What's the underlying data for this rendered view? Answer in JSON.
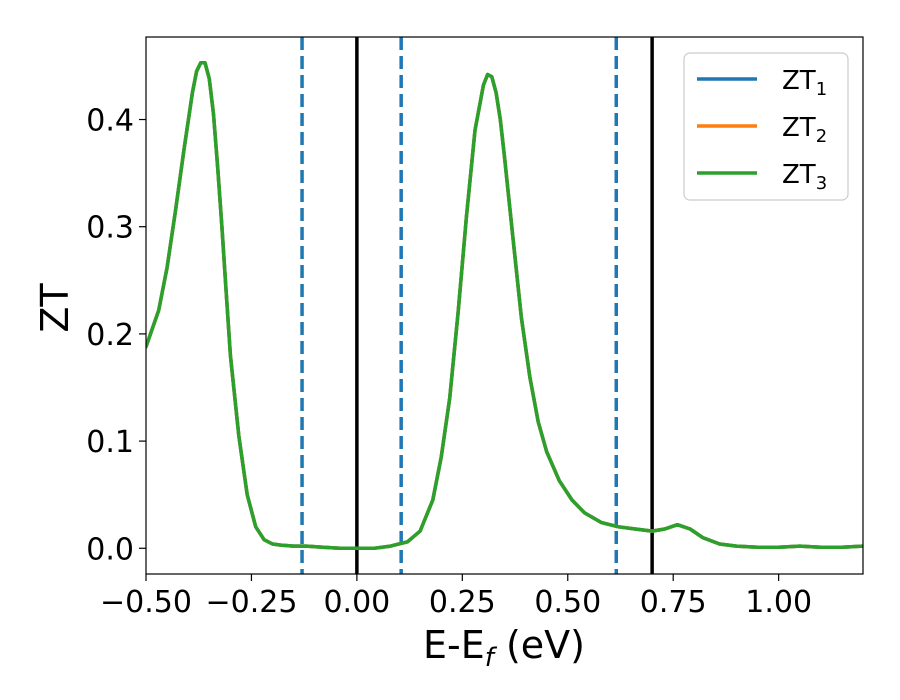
{
  "chart_data": {
    "type": "line",
    "xlabel": "E-E",
    "xlabel_sub": "f",
    "xlabel_unit": " (eV)",
    "ylabel": "ZT",
    "xlim": [
      -0.5,
      1.2
    ],
    "ylim": [
      -0.024,
      0.477
    ],
    "x_ticks": [
      -0.5,
      -0.25,
      0.0,
      0.25,
      0.5,
      0.75,
      1.0
    ],
    "x_tick_labels": [
      "−0.50",
      "−0.25",
      "0.00",
      "0.25",
      "0.50",
      "0.75",
      "1.00"
    ],
    "y_ticks": [
      0.0,
      0.1,
      0.2,
      0.3,
      0.4
    ],
    "y_tick_labels": [
      "0.0",
      "0.1",
      "0.2",
      "0.3",
      "0.4"
    ],
    "grid": false,
    "legend_position": "top-right",
    "series": [
      {
        "name": "ZT",
        "sub": "1",
        "color": "#1f77b4"
      },
      {
        "name": "ZT",
        "sub": "2",
        "color": "#ff7f0e"
      },
      {
        "name": "ZT",
        "sub": "3",
        "color": "#2ca02c"
      }
    ],
    "curve": {
      "x": [
        -0.5,
        -0.47,
        -0.45,
        -0.43,
        -0.41,
        -0.39,
        -0.38,
        -0.37,
        -0.36,
        -0.35,
        -0.34,
        -0.33,
        -0.32,
        -0.31,
        -0.3,
        -0.28,
        -0.26,
        -0.24,
        -0.22,
        -0.2,
        -0.18,
        -0.15,
        -0.12,
        -0.08,
        -0.04,
        0.0,
        0.04,
        0.08,
        0.12,
        0.15,
        0.18,
        0.2,
        0.22,
        0.24,
        0.26,
        0.28,
        0.3,
        0.31,
        0.32,
        0.33,
        0.34,
        0.35,
        0.37,
        0.39,
        0.41,
        0.43,
        0.45,
        0.48,
        0.51,
        0.54,
        0.58,
        0.62,
        0.66,
        0.7,
        0.73,
        0.76,
        0.79,
        0.82,
        0.86,
        0.9,
        0.95,
        1.0,
        1.05,
        1.1,
        1.15,
        1.2
      ],
      "y": [
        0.188,
        0.222,
        0.262,
        0.315,
        0.372,
        0.425,
        0.445,
        0.453,
        0.453,
        0.438,
        0.405,
        0.355,
        0.3,
        0.24,
        0.18,
        0.105,
        0.05,
        0.02,
        0.008,
        0.004,
        0.003,
        0.002,
        0.002,
        0.001,
        0.0,
        0.0,
        0.0,
        0.002,
        0.006,
        0.016,
        0.045,
        0.085,
        0.14,
        0.22,
        0.31,
        0.39,
        0.432,
        0.442,
        0.44,
        0.425,
        0.4,
        0.365,
        0.29,
        0.215,
        0.16,
        0.118,
        0.09,
        0.063,
        0.045,
        0.033,
        0.024,
        0.02,
        0.018,
        0.016,
        0.018,
        0.022,
        0.018,
        0.01,
        0.004,
        0.002,
        0.001,
        0.001,
        0.002,
        0.001,
        0.001,
        0.002
      ]
    },
    "vlines": [
      {
        "x": -0.13,
        "style": "dashed",
        "color": "#1f77b4"
      },
      {
        "x": 0.0,
        "style": "solid",
        "color": "#000000"
      },
      {
        "x": 0.105,
        "style": "dashed",
        "color": "#1f77b4"
      },
      {
        "x": 0.615,
        "style": "dashed",
        "color": "#1f77b4"
      },
      {
        "x": 0.7,
        "style": "solid",
        "color": "#000000"
      }
    ]
  }
}
